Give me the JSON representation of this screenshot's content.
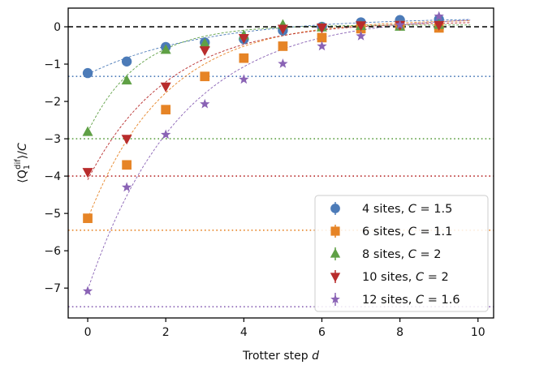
{
  "chart_data": {
    "type": "scatter",
    "title": "",
    "xlabel": "Trotter step",
    "xlabel_var": "d",
    "ylabel": "⟨Q₁^dif⟩/C",
    "ylabel_parts": {
      "open": "⟨Q",
      "sub": "1",
      "sup": "dif",
      "close": "⟩/",
      "var": "C"
    },
    "xlim": [
      -0.5,
      10.4
    ],
    "ylim": [
      -7.8,
      0.5
    ],
    "xticks": [
      0,
      2,
      4,
      6,
      8,
      10
    ],
    "yticks": [
      0,
      -1,
      -2,
      -3,
      -4,
      -5,
      -6,
      -7
    ],
    "xtick_labels": [
      "0",
      "2",
      "4",
      "6",
      "8",
      "10"
    ],
    "ytick_labels": [
      "0",
      "−1",
      "−2",
      "−3",
      "−4",
      "−5",
      "−6",
      "−7"
    ],
    "grid": false,
    "legend_position": "bottom-right",
    "reference_line": {
      "y": 0,
      "style": "dashed",
      "color": "#000000"
    },
    "series": [
      {
        "name": "4 sites, C = 1.5",
        "label_prefix": "4 sites, ",
        "label_c": "1.5",
        "marker": "circle",
        "color": "#4c7bb8",
        "x": [
          0,
          1,
          2,
          3,
          4,
          5,
          6,
          7,
          8,
          9
        ],
        "values": [
          -1.24,
          -0.93,
          -0.54,
          -0.42,
          -0.33,
          -0.1,
          0.0,
          0.12,
          0.18,
          0.2
        ],
        "asymptote": -1.33,
        "fit": {
          "a": 0.25,
          "b": 1.52,
          "k": 0.34
        }
      },
      {
        "name": "6 sites, C = 1.1",
        "label_prefix": "6 sites, ",
        "label_c": "1.1",
        "marker": "square",
        "color": "#e68426",
        "x": [
          0,
          1,
          2,
          3,
          4,
          5,
          6,
          7,
          8,
          9
        ],
        "values": [
          -5.13,
          -3.7,
          -2.22,
          -1.33,
          -0.84,
          -0.52,
          -0.29,
          -0.05,
          0.03,
          -0.03
        ],
        "asymptote": -5.45,
        "fit": {
          "a": 0.2,
          "b": 5.35,
          "k": 0.5
        }
      },
      {
        "name": "8 sites, C = 2",
        "label_prefix": "8 sites, ",
        "label_c": "2",
        "marker": "triangle-up",
        "color": "#5fa045",
        "x": [
          0,
          1,
          2,
          3,
          4,
          5,
          6,
          7,
          8,
          9
        ],
        "values": [
          -2.82,
          -1.44,
          -0.62,
          -0.45,
          -0.23,
          0.05,
          -0.02,
          0.02,
          0.0,
          0.05
        ],
        "asymptote": -3.0,
        "fit": {
          "a": 0.05,
          "b": 2.87,
          "k": 0.75
        }
      },
      {
        "name": "10 sites, C = 2",
        "label_prefix": "10 sites, ",
        "label_c": "2",
        "marker": "triangle-down",
        "color": "#b82c2c",
        "x": [
          0,
          1,
          2,
          3,
          4,
          5,
          6,
          7,
          8,
          9
        ],
        "values": [
          -3.89,
          -3.0,
          -1.6,
          -0.63,
          -0.3,
          -0.05,
          -0.02,
          0.04,
          0.05,
          0.05
        ],
        "asymptote": -4.0,
        "fit": {
          "a": 0.15,
          "b": 4.25,
          "k": 0.48
        }
      },
      {
        "name": "12 sites, C = 1.6",
        "label_prefix": "12 sites, ",
        "label_c": "1.6",
        "marker": "star",
        "color": "#8a63b5",
        "x": [
          0,
          1,
          2,
          3,
          4,
          5,
          6,
          7,
          8,
          9
        ],
        "values": [
          -7.08,
          -4.3,
          -2.89,
          -2.07,
          -1.41,
          -0.99,
          -0.52,
          -0.25,
          0.05,
          0.28
        ],
        "asymptote": -7.5,
        "fit": {
          "a": 0.3,
          "b": 7.35,
          "k": 0.42
        }
      }
    ]
  }
}
